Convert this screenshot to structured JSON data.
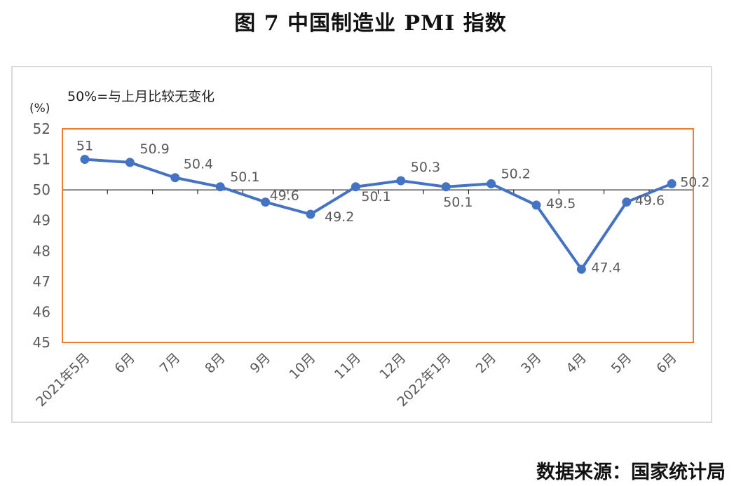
{
  "title": "图 7  中国制造业 PMI 指数",
  "source": "数据来源：国家统计局",
  "chart_data": {
    "type": "line",
    "title": "图 7  中国制造业 PMI 指数",
    "unit_label": "(%)",
    "annotation": "50%=与上月比较无变化",
    "categories": [
      "2021年5月",
      "6月",
      "7月",
      "8月",
      "9月",
      "10月",
      "11月",
      "12月",
      "2022年1月",
      "2月",
      "3月",
      "4月",
      "5月",
      "6月"
    ],
    "series": [
      {
        "values": [
          51,
          50.9,
          50.4,
          50.1,
          49.6,
          49.2,
          50.1,
          50.3,
          50.1,
          50.2,
          49.5,
          47.4,
          49.6,
          50.2
        ],
        "labels": [
          "51",
          "50.9",
          "50.4",
          "50.1",
          "49.6",
          "49.2",
          "50.1",
          "50.3",
          "50.1",
          "50.2",
          "49.5",
          "47.4",
          "49.6",
          "50.2"
        ]
      }
    ],
    "yticks": [
      "52",
      "51",
      "50",
      "49",
      "48",
      "47",
      "46",
      "45"
    ],
    "ylim": [
      45,
      52
    ],
    "reference_line": 50,
    "colors": {
      "line": "#4472c4",
      "plot_border": "#ed7d31",
      "reference": "#000000",
      "outer_border": "#d9d9d9"
    }
  }
}
